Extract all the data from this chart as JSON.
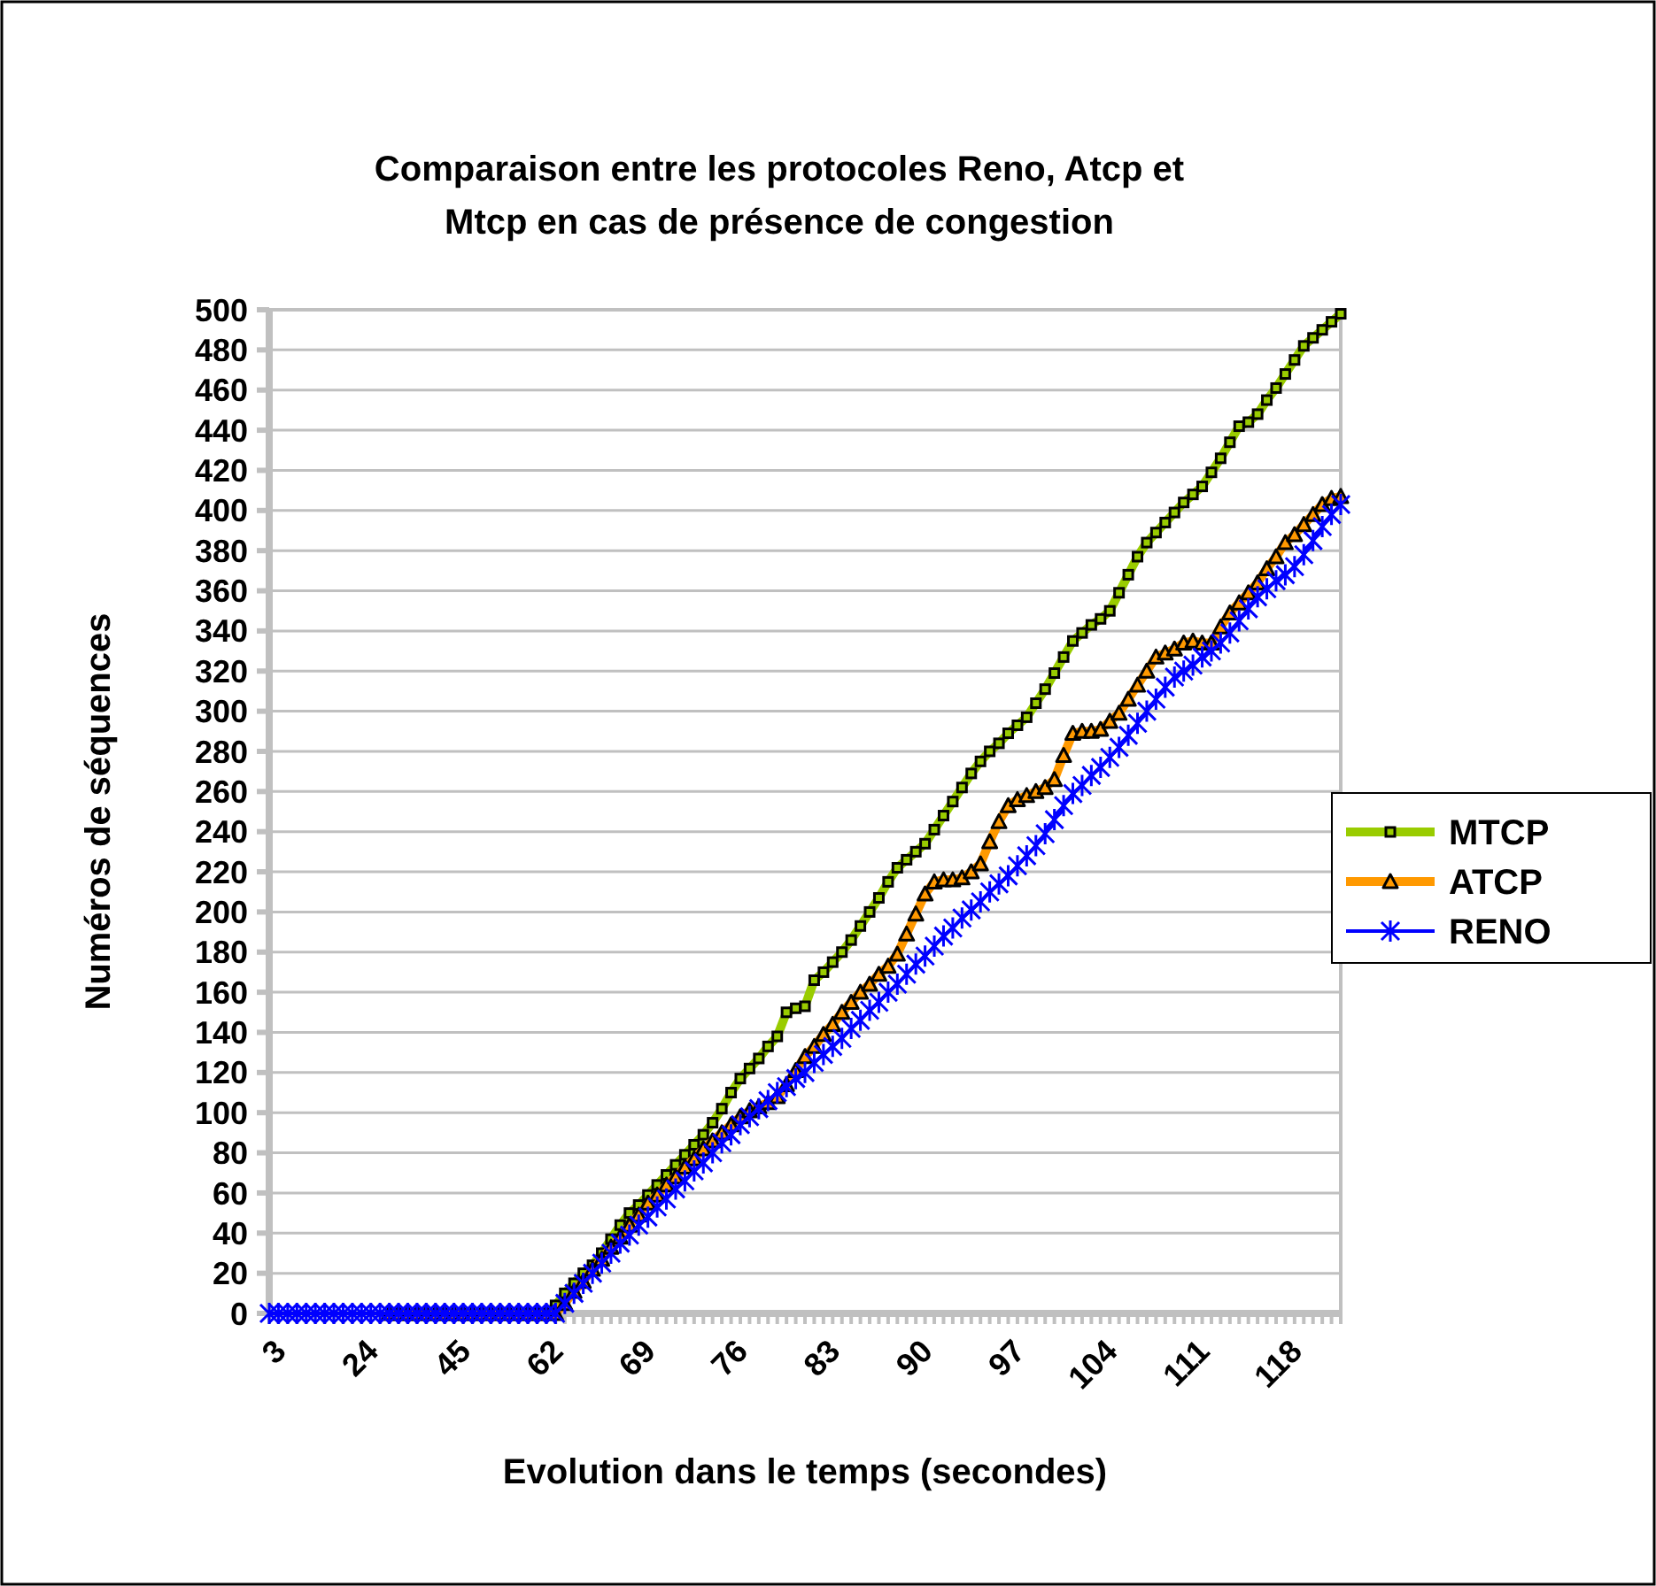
{
  "chart_data": {
    "type": "line",
    "title": "Comparaison entre les protocoles Reno, Atcp et Mtcp en cas de présence de congestion",
    "xlabel": "Evolution dans le temps  (secondes)",
    "ylabel": "Numéros de séquences",
    "categories": [
      "3",
      null,
      null,
      null,
      null,
      null,
      null,
      null,
      null,
      null,
      "24",
      null,
      null,
      null,
      null,
      null,
      null,
      null,
      null,
      null,
      "45",
      null,
      null,
      null,
      null,
      null,
      null,
      null,
      null,
      null,
      "62",
      null,
      null,
      null,
      null,
      null,
      null,
      null,
      null,
      null,
      "69",
      null,
      null,
      null,
      null,
      null,
      null,
      null,
      null,
      null,
      "76",
      null,
      null,
      null,
      null,
      null,
      null,
      null,
      null,
      null,
      "83",
      null,
      null,
      null,
      null,
      null,
      null,
      null,
      null,
      null,
      "90",
      null,
      null,
      null,
      null,
      null,
      null,
      null,
      null,
      null,
      "97",
      null,
      null,
      null,
      null,
      null,
      null,
      null,
      null,
      null,
      "104",
      null,
      null,
      null,
      null,
      null,
      null,
      null,
      null,
      null,
      "111",
      null,
      null,
      null,
      null,
      null,
      null,
      null,
      null,
      null,
      "118",
      null,
      null,
      null,
      null,
      null,
      null
    ],
    "ylim": [
      0,
      500
    ],
    "yticks": [
      0,
      20,
      40,
      60,
      80,
      100,
      120,
      140,
      160,
      180,
      200,
      220,
      240,
      260,
      280,
      300,
      320,
      340,
      360,
      380,
      400,
      420,
      440,
      460,
      480,
      500
    ],
    "grid": "y",
    "legend": "right",
    "series": [
      {
        "name": "MTCP",
        "color": "#99cc00",
        "marker": "square",
        "values": [
          null,
          null,
          null,
          null,
          null,
          null,
          null,
          null,
          null,
          null,
          null,
          null,
          null,
          null,
          null,
          null,
          null,
          null,
          null,
          null,
          null,
          null,
          null,
          null,
          null,
          null,
          null,
          null,
          null,
          0,
          0,
          4,
          10,
          15,
          20,
          24,
          30,
          37,
          44,
          50,
          54,
          59,
          64,
          69,
          74,
          79,
          84,
          89,
          95,
          102,
          110,
          117,
          122,
          127,
          133,
          138,
          150,
          152,
          153,
          166,
          170,
          175,
          180,
          186,
          193,
          200,
          207,
          215,
          222,
          226,
          230,
          234,
          241,
          248,
          255,
          262,
          269,
          275,
          280,
          284,
          289,
          293,
          297,
          304,
          311,
          319,
          327,
          335,
          339,
          343,
          346,
          350,
          359,
          368,
          377,
          384,
          389,
          394,
          399,
          404,
          408,
          412,
          419,
          426,
          434,
          442,
          444,
          448,
          455,
          461,
          468,
          475,
          482,
          486,
          490,
          494,
          498
        ]
      },
      {
        "name": "ATCP",
        "color": "#ff9900",
        "marker": "triangle",
        "values": [
          null,
          null,
          null,
          null,
          null,
          null,
          null,
          null,
          null,
          null,
          null,
          null,
          null,
          0,
          0,
          0,
          0,
          0,
          0,
          0,
          0,
          0,
          0,
          0,
          0,
          0,
          0,
          0,
          0,
          0,
          0,
          0,
          5,
          11,
          16,
          22,
          27,
          33,
          38,
          44,
          49,
          55,
          59,
          64,
          68,
          73,
          77,
          82,
          86,
          90,
          94,
          98,
          101,
          103,
          105,
          108,
          114,
          121,
          128,
          133,
          139,
          144,
          150,
          155,
          160,
          164,
          169,
          173,
          179,
          189,
          199,
          209,
          215,
          216,
          216,
          217,
          220,
          224,
          235,
          245,
          253,
          256,
          258,
          260,
          262,
          266,
          278,
          289,
          290,
          290,
          291,
          295,
          299,
          306,
          313,
          320,
          327,
          329,
          331,
          334,
          335,
          334,
          334,
          342,
          349,
          354,
          359,
          364,
          371,
          377,
          384,
          388,
          393,
          398,
          403,
          406,
          407
        ]
      },
      {
        "name": "RENO",
        "color": "#0000ff",
        "marker": "cross",
        "values": [
          0,
          0,
          0,
          0,
          0,
          0,
          0,
          0,
          0,
          0,
          0,
          0,
          0,
          0,
          0,
          0,
          0,
          0,
          0,
          0,
          0,
          0,
          0,
          0,
          0,
          0,
          0,
          0,
          0,
          0,
          0,
          0,
          5,
          10,
          15,
          20,
          25,
          30,
          35,
          39,
          44,
          48,
          53,
          57,
          62,
          66,
          71,
          75,
          80,
          85,
          89,
          94,
          98,
          102,
          106,
          110,
          113,
          117,
          120,
          125,
          129,
          133,
          137,
          142,
          146,
          151,
          155,
          160,
          164,
          169,
          174,
          178,
          183,
          188,
          192,
          197,
          201,
          205,
          210,
          214,
          218,
          223,
          228,
          233,
          239,
          246,
          253,
          259,
          263,
          268,
          272,
          277,
          282,
          288,
          294,
          300,
          306,
          312,
          317,
          320,
          323,
          327,
          330,
          334,
          339,
          345,
          351,
          357,
          361,
          365,
          368,
          372,
          378,
          385,
          392,
          398,
          403
        ]
      }
    ]
  }
}
